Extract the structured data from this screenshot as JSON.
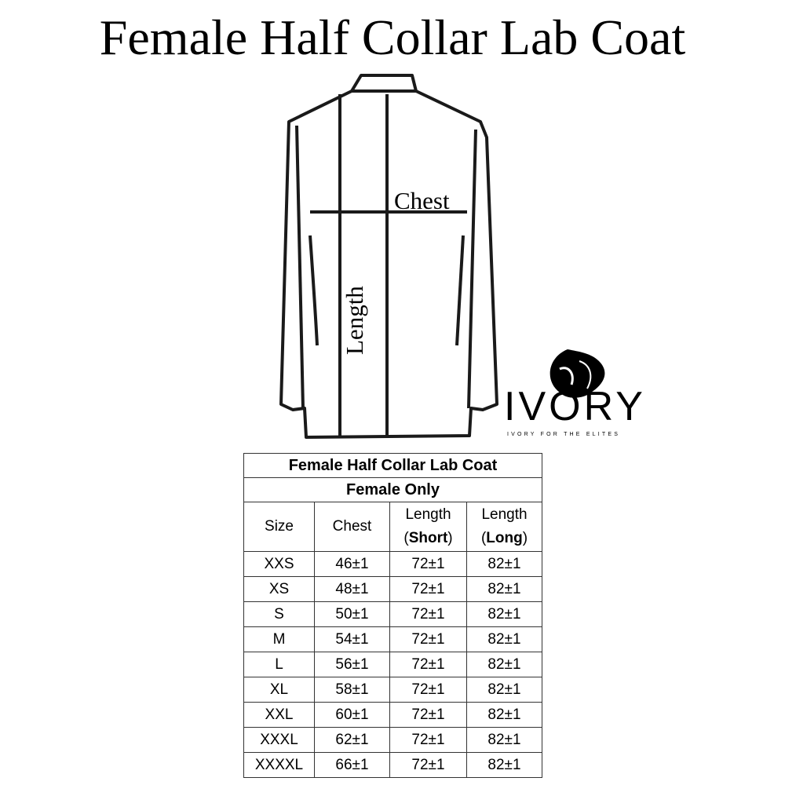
{
  "title": "Female Half Collar Lab Coat",
  "diagram": {
    "chest_label": "Chest",
    "length_label": "Length"
  },
  "logo": {
    "word": "IVORY",
    "tagline": "IVORY FOR THE ELITES"
  },
  "table": {
    "title": "Female Half Collar Lab Coat",
    "subtitle": "Female Only",
    "headers": {
      "size": "Size",
      "chest": "Chest",
      "short_1": "Length",
      "short_2": "Short",
      "long_1": "Length",
      "long_2": "Long"
    },
    "rows": [
      [
        "XXS",
        "46±1",
        "72±1",
        "82±1"
      ],
      [
        "XS",
        "48±1",
        "72±1",
        "82±1"
      ],
      [
        "S",
        "50±1",
        "72±1",
        "82±1"
      ],
      [
        "M",
        "54±1",
        "72±1",
        "82±1"
      ],
      [
        "L",
        "56±1",
        "72±1",
        "82±1"
      ],
      [
        "XL",
        "58±1",
        "72±1",
        "82±1"
      ],
      [
        "XXL",
        "60±1",
        "72±1",
        "82±1"
      ],
      [
        "XXXL",
        "62±1",
        "72±1",
        "82±1"
      ],
      [
        "XXXXL",
        "66±1",
        "72±1",
        "82±1"
      ]
    ]
  }
}
